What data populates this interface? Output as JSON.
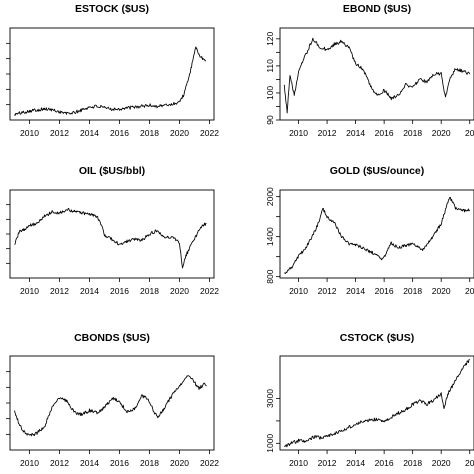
{
  "chart_data": [
    {
      "type": "line",
      "title": "ESTOCK ($US)",
      "xlabel": "",
      "ylabel": "",
      "x_ticks": [
        "2010",
        "2012",
        "2014",
        "2016",
        "2018",
        "2020",
        "2022"
      ],
      "y_ticks": [],
      "xlim": [
        2008.7,
        2022.3
      ],
      "ylim": [
        0,
        100
      ],
      "series": [
        {
          "x": [
            2009,
            2009.5,
            2010,
            2010.5,
            2011,
            2011.5,
            2012,
            2012.5,
            2013,
            2013.5,
            2014,
            2014.5,
            2015,
            2015.5,
            2016,
            2016.5,
            2017,
            2017.5,
            2018,
            2018.5,
            2019,
            2019.5,
            2020,
            2020.3,
            2020.6,
            2020.8,
            2021,
            2021.1,
            2021.2,
            2021.3,
            2021.45,
            2021.6,
            2021.75
          ],
          "y": [
            6,
            8,
            10,
            11,
            12,
            11,
            9,
            7,
            8,
            11,
            14,
            15,
            13,
            12,
            12,
            13,
            14,
            15,
            16,
            15,
            16,
            17,
            20,
            28,
            45,
            58,
            72,
            80,
            76,
            70,
            68,
            66,
            65
          ]
        }
      ]
    },
    {
      "type": "line",
      "title": "EBOND ($US)",
      "xlabel": "",
      "ylabel": "",
      "x_ticks": [
        "2010",
        "2012",
        "2014",
        "2016",
        "2018",
        "2020",
        "20"
      ],
      "y_ticks": [
        "90",
        "100",
        "110",
        "120"
      ],
      "xlim": [
        2008.7,
        2022.3
      ],
      "ylim": [
        90,
        124
      ],
      "series": [
        {
          "x": [
            2009,
            2009.2,
            2009.4,
            2009.7,
            2010,
            2010.5,
            2011,
            2011.5,
            2012,
            2012.5,
            2013,
            2013.5,
            2014,
            2014.5,
            2015,
            2015.5,
            2016,
            2016.5,
            2017,
            2017.5,
            2018,
            2018.5,
            2019,
            2019.5,
            2020,
            2020.3,
            2020.6,
            2021,
            2021.5,
            2022
          ],
          "y": [
            103,
            93,
            107,
            99,
            108,
            114,
            120,
            117,
            116,
            118,
            119,
            117,
            111,
            109,
            103,
            99,
            101,
            98,
            99,
            103,
            102,
            105,
            104,
            107,
            107,
            98,
            105,
            109,
            108,
            107
          ]
        }
      ]
    },
    {
      "type": "line",
      "title": "OIL ($US/bbl)",
      "xlabel": "",
      "ylabel": "",
      "x_ticks": [
        "2010",
        "2012",
        "2014",
        "2016",
        "2018",
        "2020",
        "2022"
      ],
      "y_ticks": [],
      "xlim": [
        2008.7,
        2022.3
      ],
      "ylim": [
        0,
        100
      ],
      "series": [
        {
          "x": [
            2009,
            2009.3,
            2009.7,
            2010,
            2010.5,
            2011,
            2011.5,
            2012,
            2012.5,
            2013,
            2013.5,
            2014,
            2014.5,
            2014.8,
            2015,
            2015.5,
            2016,
            2016.5,
            2017,
            2017.5,
            2018,
            2018.5,
            2019,
            2019.5,
            2020,
            2020.2,
            2020.35,
            2020.5,
            2021,
            2021.5,
            2021.8
          ],
          "y": [
            38,
            52,
            56,
            60,
            62,
            70,
            75,
            74,
            78,
            76,
            74,
            72,
            70,
            60,
            48,
            44,
            38,
            42,
            44,
            43,
            50,
            54,
            46,
            47,
            40,
            10,
            22,
            28,
            45,
            60,
            62
          ]
        }
      ]
    },
    {
      "type": "line",
      "title": "GOLD ($US/ounce)",
      "xlabel": "",
      "ylabel": "",
      "x_ticks": [
        "2010",
        "2012",
        "2014",
        "2016",
        "2018",
        "2020",
        "20"
      ],
      "y_ticks": [
        "800",
        "1400",
        "2000"
      ],
      "xlim": [
        2008.7,
        2022.3
      ],
      "ylim": [
        780,
        2100
      ],
      "series": [
        {
          "x": [
            2009,
            2009.5,
            2010,
            2010.5,
            2011,
            2011.5,
            2011.7,
            2012,
            2012.5,
            2013,
            2013.5,
            2014,
            2015,
            2015.9,
            2016.5,
            2017,
            2018,
            2018.7,
            2019,
            2019.5,
            2020,
            2020.6,
            2021,
            2021.5,
            2022
          ],
          "y": [
            850,
            930,
            1110,
            1230,
            1420,
            1650,
            1830,
            1690,
            1620,
            1400,
            1300,
            1280,
            1180,
            1060,
            1300,
            1230,
            1300,
            1190,
            1290,
            1420,
            1600,
            2000,
            1830,
            1790,
            1800
          ]
        }
      ]
    },
    {
      "type": "line",
      "title": "CBONDS ($US)",
      "xlabel": "",
      "ylabel": "",
      "x_ticks": [
        "2010",
        "2012",
        "2014",
        "2016",
        "2018",
        "2020",
        "2022"
      ],
      "y_ticks": [],
      "xlim": [
        2008.7,
        2022.3
      ],
      "ylim": [
        0,
        100
      ],
      "series": [
        {
          "x": [
            2009,
            2009.3,
            2009.6,
            2010,
            2010.5,
            2011,
            2011.5,
            2012,
            2012.5,
            2013,
            2013.5,
            2014,
            2014.5,
            2015,
            2015.5,
            2016,
            2016.5,
            2017,
            2017.5,
            2018,
            2018.3,
            2018.6,
            2019,
            2019.5,
            2020,
            2020.5,
            2021,
            2021.3,
            2021.6,
            2021.8
          ],
          "y": [
            42,
            28,
            20,
            15,
            18,
            25,
            45,
            55,
            52,
            40,
            38,
            42,
            40,
            45,
            55,
            52,
            40,
            44,
            58,
            52,
            40,
            35,
            45,
            58,
            68,
            80,
            72,
            65,
            70,
            68
          ]
        }
      ]
    },
    {
      "type": "line",
      "title": "CSTOCK ($US)",
      "xlabel": "",
      "ylabel": "",
      "x_ticks": [
        "2010",
        "2012",
        "2014",
        "2016",
        "2018",
        "2020",
        "20"
      ],
      "y_ticks": [
        "1000",
        "3000"
      ],
      "xlim": [
        2008.7,
        2022.3
      ],
      "ylim": [
        700,
        4900
      ],
      "series": [
        {
          "x": [
            2009,
            2009.5,
            2010,
            2010.5,
            2011,
            2011.5,
            2012,
            2012.5,
            2013,
            2013.5,
            2014,
            2014.5,
            2015,
            2015.5,
            2016,
            2016.5,
            2017,
            2017.5,
            2018,
            2018.5,
            2019,
            2019.5,
            2020,
            2020.2,
            2020.5,
            2021,
            2021.5,
            2022
          ],
          "y": [
            850,
            1000,
            1120,
            1080,
            1280,
            1250,
            1330,
            1420,
            1550,
            1700,
            1860,
            1980,
            2060,
            2060,
            1960,
            2150,
            2350,
            2500,
            2750,
            2900,
            2750,
            2950,
            3200,
            2600,
            3250,
            3800,
            4350,
            4750
          ]
        }
      ]
    }
  ]
}
